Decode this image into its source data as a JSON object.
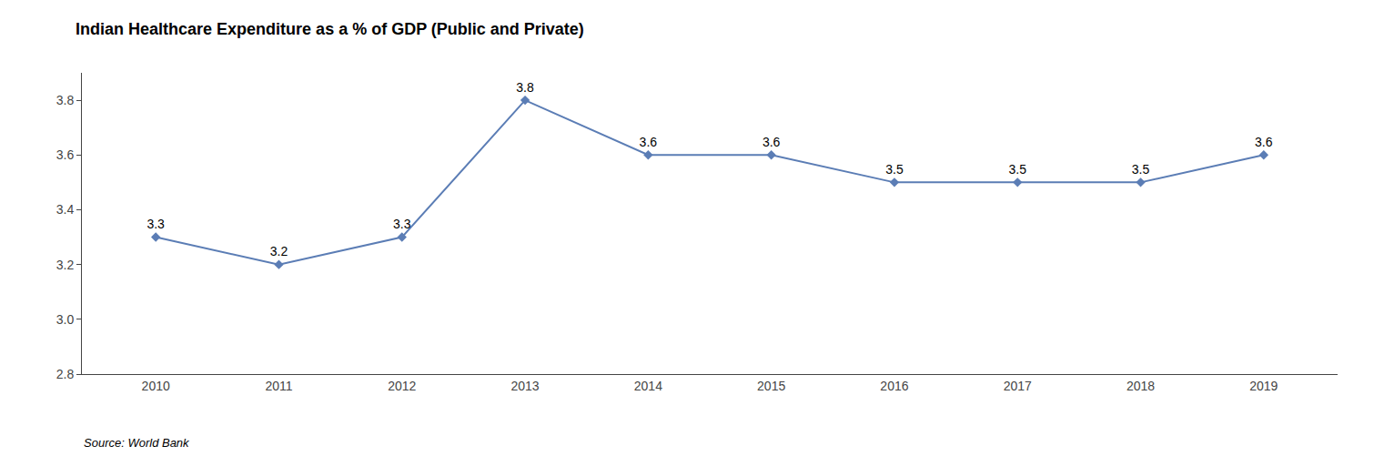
{
  "chart_data": {
    "type": "line",
    "title": "Indian Healthcare Expenditure as a % of GDP (Public and Private)",
    "annotations": [
      "Source: World Bank"
    ],
    "x": [
      2010,
      2011,
      2012,
      2013,
      2014,
      2015,
      2016,
      2017,
      2018,
      2019
    ],
    "values": [
      3.3,
      3.2,
      3.3,
      3.8,
      3.6,
      3.6,
      3.5,
      3.5,
      3.5,
      3.6
    ],
    "color": "#5b7db5",
    "marker": "diamond",
    "line_style": "solid",
    "xlim": [
      2009.4,
      2019.6
    ],
    "xticks": [
      2010,
      2011,
      2012,
      2013,
      2014,
      2015,
      2016,
      2017,
      2018,
      2019
    ],
    "ylim": [
      2.8,
      3.9
    ],
    "yticks": [
      2.8,
      {
        "value": 3.0,
        "label": "3.0"
      },
      3.2,
      3.4,
      3.6,
      3.8
    ],
    "data_labels": true,
    "grid": false
  }
}
